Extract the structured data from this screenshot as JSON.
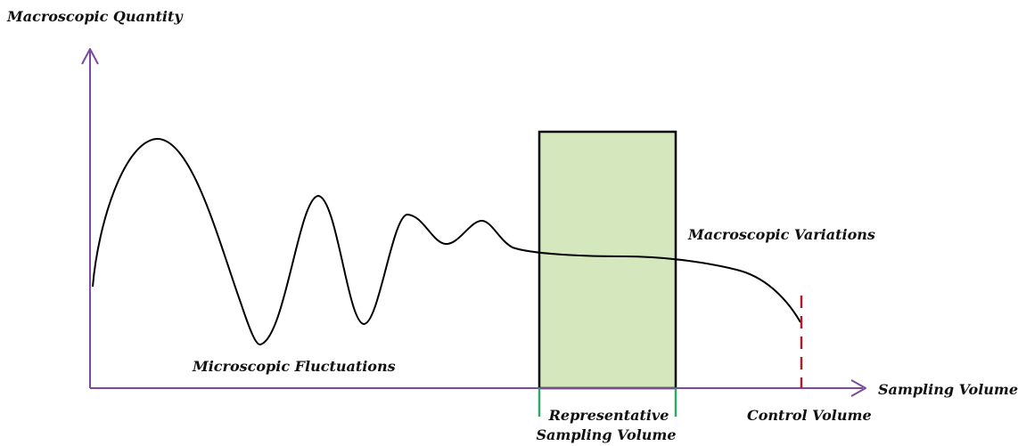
{
  "labels": {
    "y_axis": "Macroscopic Quantity",
    "x_axis": "Sampling Volume",
    "micro": "Microscopic Fluctuations",
    "macro": "Macroscopic Variations",
    "rsv_line1": "Representative",
    "rsv_line2": "Sampling Volume",
    "control": "Control Volume"
  },
  "colors": {
    "axis": "#7b4a9e",
    "curve": "#000000",
    "rsv_fill": "#d5e8bd",
    "rsv_stroke": "#000000",
    "rsv_marker": "#2fa86a",
    "control_marker": "#a8202a"
  }
}
